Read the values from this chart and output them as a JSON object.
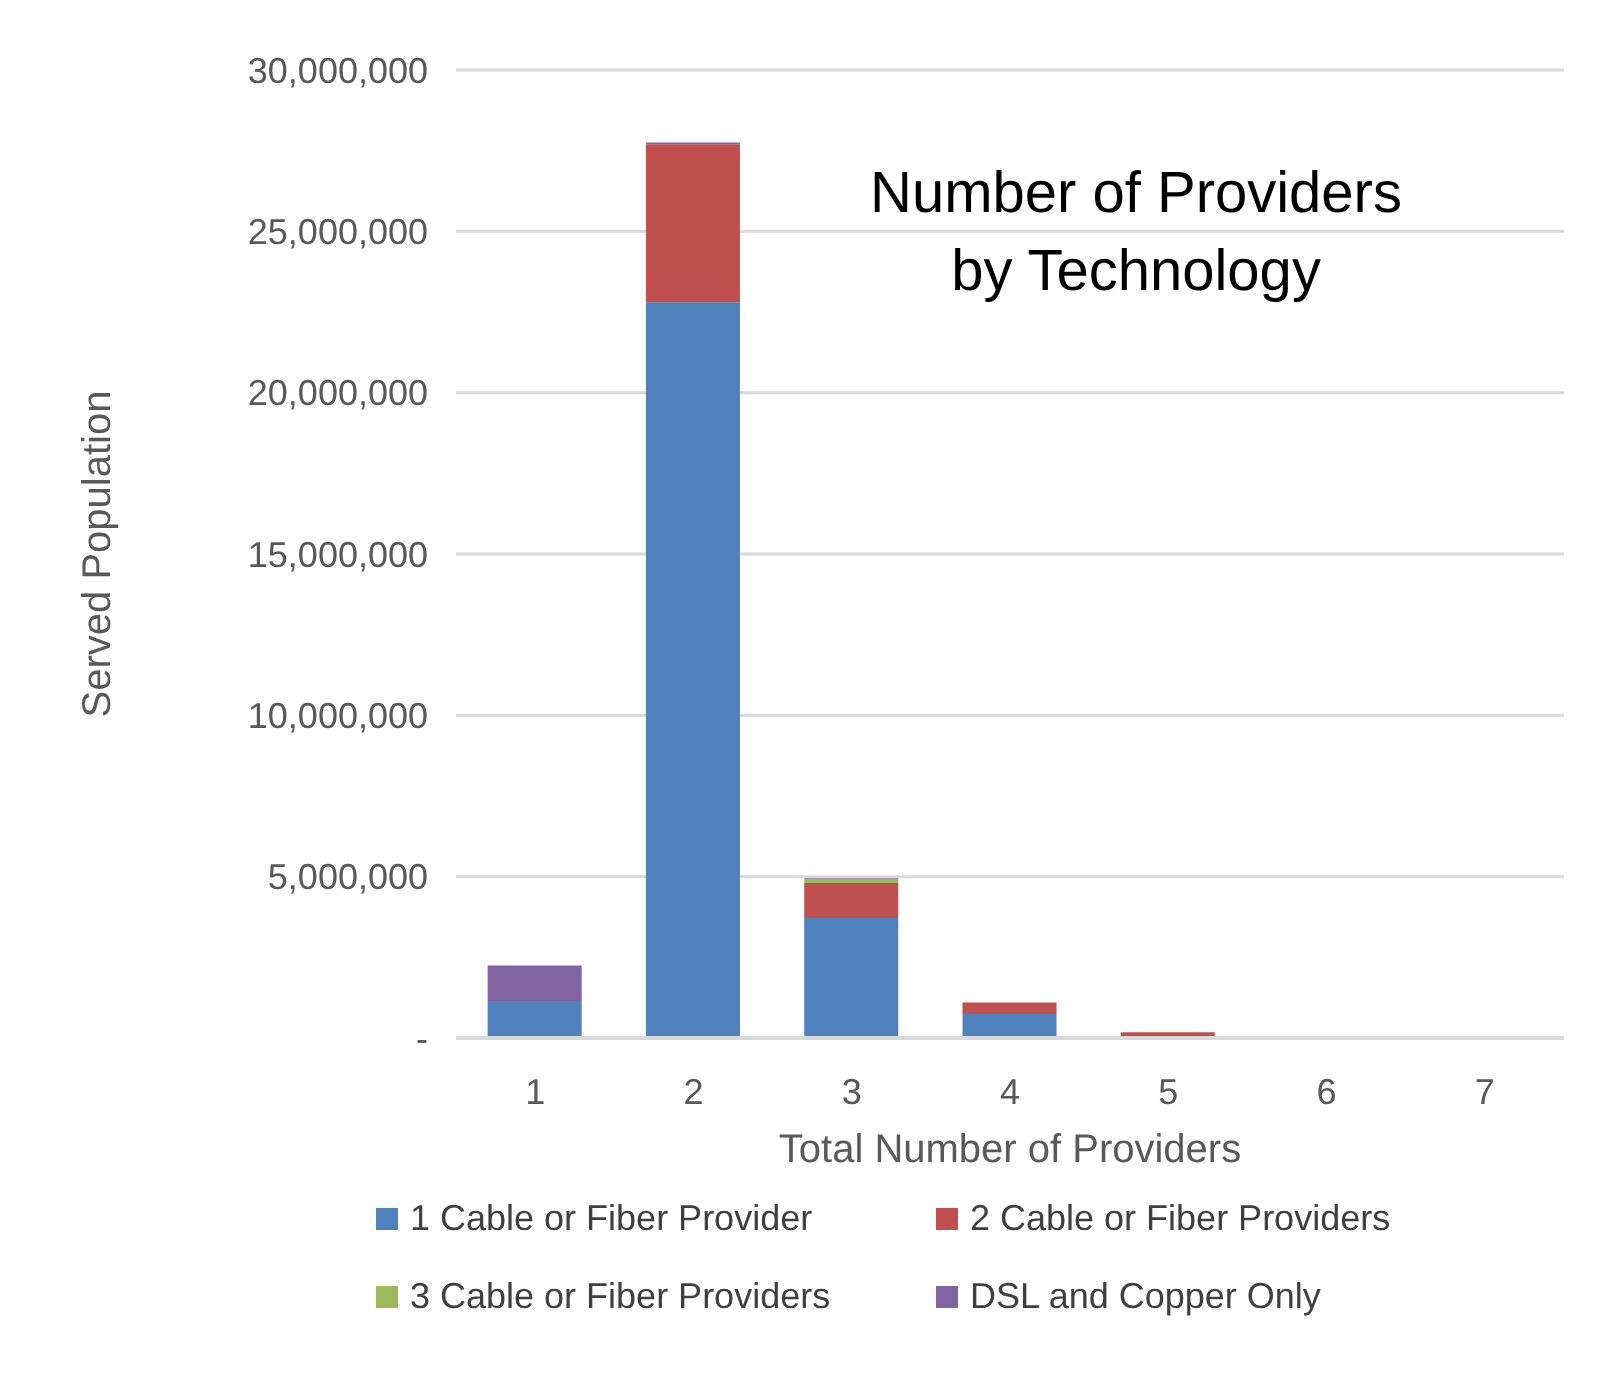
{
  "chart_data": {
    "type": "bar",
    "title": "Number of Providers\nby Technology",
    "xlabel": "Total Number of Providers",
    "ylabel": "Served Population",
    "categories": [
      "1",
      "2",
      "3",
      "4",
      "5",
      "6",
      "7"
    ],
    "stacked": true,
    "series": [
      {
        "name": "1 Cable or Fiber Provider",
        "color": "#4f81bd",
        "values": [
          1150000,
          22800000,
          3720000,
          740000,
          null,
          null,
          null
        ]
      },
      {
        "name": "2 Cable or Fiber Providers",
        "color": "#c0504d",
        "values": [
          0,
          4900000,
          1080000,
          360000,
          180000,
          null,
          null
        ]
      },
      {
        "name": "3 Cable or Fiber Providers",
        "color": "#9bbb59",
        "values": [
          0,
          0,
          130000,
          null,
          null,
          null,
          null
        ]
      },
      {
        "name": "DSL and Copper Only",
        "color": "#8064a2",
        "values": [
          1100000,
          50000,
          20000,
          0,
          0,
          0,
          0
        ]
      }
    ],
    "ylim": [
      0,
      30000000
    ],
    "yticks": [
      {
        "value": 0,
        "label": "-"
      },
      {
        "value": 5000000,
        "label": "5,000,000"
      },
      {
        "value": 10000000,
        "label": "10,000,000"
      },
      {
        "value": 15000000,
        "label": "15,000,000"
      },
      {
        "value": 20000000,
        "label": "20,000,000"
      },
      {
        "value": 25000000,
        "label": "25,000,000"
      },
      {
        "value": 30000000,
        "label": "30,000,000"
      }
    ],
    "grid": "y",
    "legend": "bottom"
  }
}
